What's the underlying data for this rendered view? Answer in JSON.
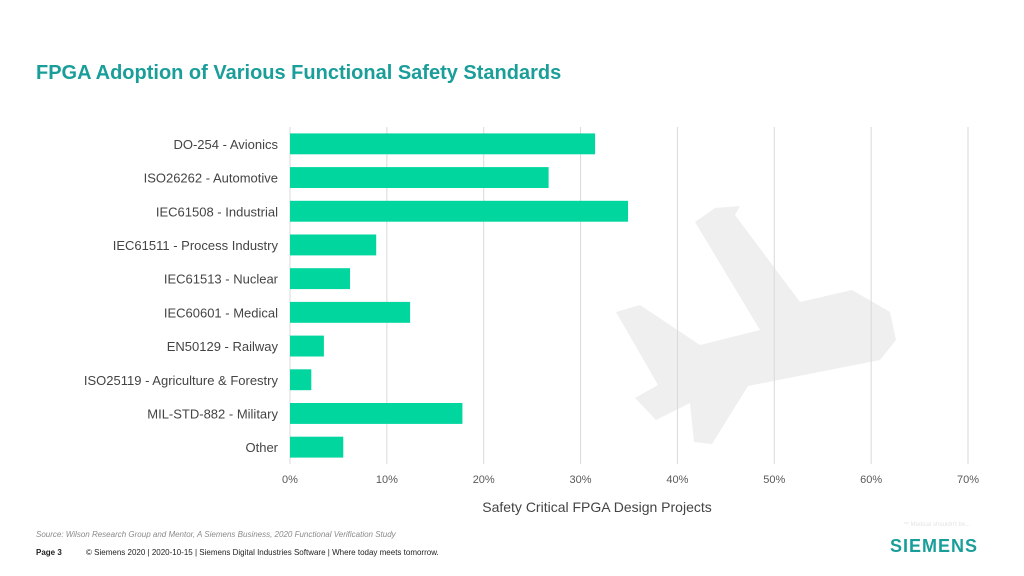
{
  "slide": {
    "title": "FPGA Adoption of Various Functional Safety Standards",
    "source": "Source:  Wilson Research Group and Mentor,  A Siemens Business, 2020 Functional Verification Study",
    "page_label": "Page 3",
    "footer_text": "© Siemens 2020 | 2020-10-15 | Siemens Digital Industries Software | Where today meets tomorrow.",
    "logo_text": "SIEMENS",
    "watermark_text": "™ Medical shouldn't be..."
  },
  "colors": {
    "title": "#1a9e9a",
    "bar": "#00d69e",
    "grid": "#d9d9d9",
    "plane": "#efefef"
  },
  "chart_data": {
    "type": "bar",
    "orientation": "horizontal",
    "categories": [
      "DO-254 - Avionics",
      "ISO26262 - Automotive",
      "IEC61508 - Industrial",
      "IEC61511 - Process Industry",
      "IEC61513 - Nuclear",
      "IEC60601 - Medical",
      "EN50129 - Railway",
      "ISO25119 - Agriculture & Forestry",
      "MIL-STD-882 - Military",
      "Other"
    ],
    "values": [
      31.5,
      26.7,
      34.9,
      8.9,
      6.2,
      12.4,
      3.5,
      2.2,
      17.8,
      5.5
    ],
    "xlabel": "Safety Critical FPGA Design Projects",
    "ylabel": "",
    "xlim": [
      0,
      70
    ],
    "xticks": [
      0,
      10,
      20,
      30,
      40,
      50,
      60,
      70
    ],
    "xtick_labels": [
      "0%",
      "10%",
      "20%",
      "30%",
      "40%",
      "50%",
      "60%",
      "70%"
    ],
    "grid": true,
    "legend": "none"
  }
}
